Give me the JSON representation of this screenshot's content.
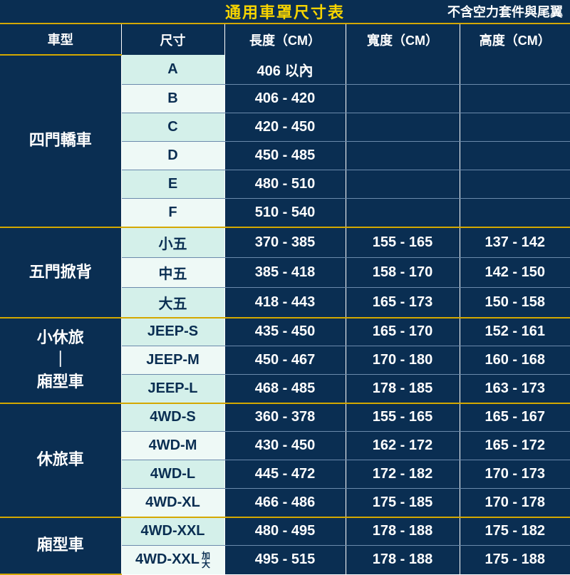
{
  "header": {
    "title": "通用車罩尺寸表",
    "note": "不含空力套件與尾翼"
  },
  "columns": [
    "車型",
    "尺寸",
    "長度（CM）",
    "寬度（CM）",
    "高度（CM）"
  ],
  "styling": {
    "dark_bg": "#0a2e52",
    "accent": "#d4a800",
    "title_color": "#f7d400",
    "size_odd_bg": "#d4f0ea",
    "size_even_bg": "#eef9f6",
    "row_sep_color": "#6b8aac",
    "header_text_fontsize": 18,
    "cell_text_fontsize": 20,
    "category_fontsize": 22
  },
  "groups": [
    {
      "category": "四門轎車",
      "rows": [
        {
          "size": "A",
          "length": "406 以內",
          "width": "",
          "height": ""
        },
        {
          "size": "B",
          "length": "406 - 420",
          "width": "",
          "height": ""
        },
        {
          "size": "C",
          "length": "420 - 450",
          "width": "",
          "height": ""
        },
        {
          "size": "D",
          "length": "450 - 485",
          "width": "",
          "height": ""
        },
        {
          "size": "E",
          "length": "480 - 510",
          "width": "",
          "height": ""
        },
        {
          "size": "F",
          "length": "510 - 540",
          "width": "",
          "height": ""
        }
      ]
    },
    {
      "category": "五門掀背",
      "rows": [
        {
          "size": "小五",
          "length": "370 - 385",
          "width": "155 - 165",
          "height": "137 - 142"
        },
        {
          "size": "中五",
          "length": "385 - 418",
          "width": "158 - 170",
          "height": "142 - 150"
        },
        {
          "size": "大五",
          "length": "418 - 443",
          "width": "165 - 173",
          "height": "150 - 158"
        }
      ]
    },
    {
      "category": "小休旅\n｜\n廂型車",
      "rows": [
        {
          "size": "JEEP-S",
          "length": "435 - 450",
          "width": "165 - 170",
          "height": "152 - 161"
        },
        {
          "size": "JEEP-M",
          "length": "450 - 467",
          "width": "170 - 180",
          "height": "160 - 168"
        },
        {
          "size": "JEEP-L",
          "length": "468 - 485",
          "width": "178 - 185",
          "height": "163 - 173"
        }
      ]
    },
    {
      "category": "休旅車",
      "rows": [
        {
          "size": "4WD-S",
          "length": "360 - 378",
          "width": "155 - 165",
          "height": "165 - 167"
        },
        {
          "size": "4WD-M",
          "length": "430 - 450",
          "width": "162 - 172",
          "height": "165 - 172"
        },
        {
          "size": "4WD-L",
          "length": "445 - 472",
          "width": "172 - 182",
          "height": "170 - 173"
        },
        {
          "size": "4WD-XL",
          "length": "466 - 486",
          "width": "175 - 185",
          "height": "170 - 178"
        }
      ]
    },
    {
      "category": "廂型車",
      "rows": [
        {
          "size": "4WD-XXL",
          "length": "480 - 495",
          "width": "178 - 188",
          "height": "175 - 182"
        },
        {
          "size": "4WD-XXL",
          "size_suffix": "加大",
          "length": "495 - 515",
          "width": "178 - 188",
          "height": "175 - 188"
        }
      ]
    }
  ]
}
